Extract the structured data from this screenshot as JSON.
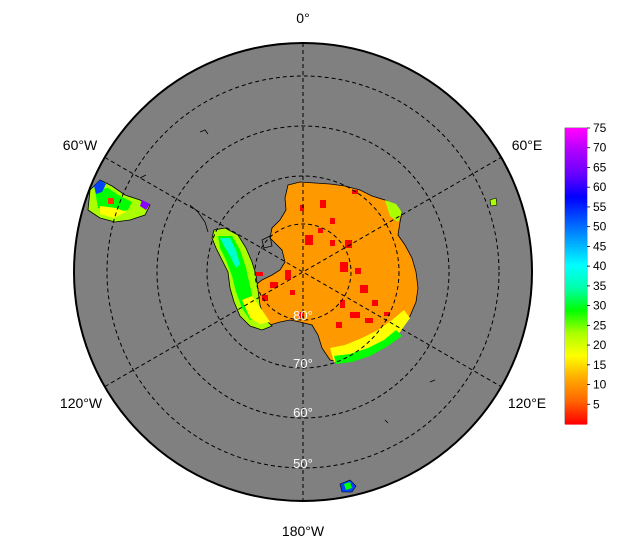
{
  "map": {
    "projection": "south-polar-stereographic",
    "ocean_color": "#808080",
    "ice_color": "#ff9900",
    "longitude_labels": [
      "0°",
      "60°E",
      "120°E",
      "180°W",
      "120°W",
      "60°W"
    ],
    "latitude_labels": [
      "80°",
      "70°",
      "60°",
      "50°"
    ]
  },
  "colorbar": {
    "min": 0,
    "max": 75,
    "ticks": [
      "5",
      "10",
      "15",
      "20",
      "25",
      "30",
      "35",
      "40",
      "45",
      "50",
      "55",
      "60",
      "65",
      "70",
      "75"
    ],
    "colors": [
      "#ff0000",
      "#ff6600",
      "#ffaa00",
      "#ffff00",
      "#aaff00",
      "#00ff00",
      "#00ffaa",
      "#00ffff",
      "#00aaff",
      "#0055ff",
      "#0000ff",
      "#6600ff",
      "#aa00ff",
      "#ff00ff"
    ]
  }
}
